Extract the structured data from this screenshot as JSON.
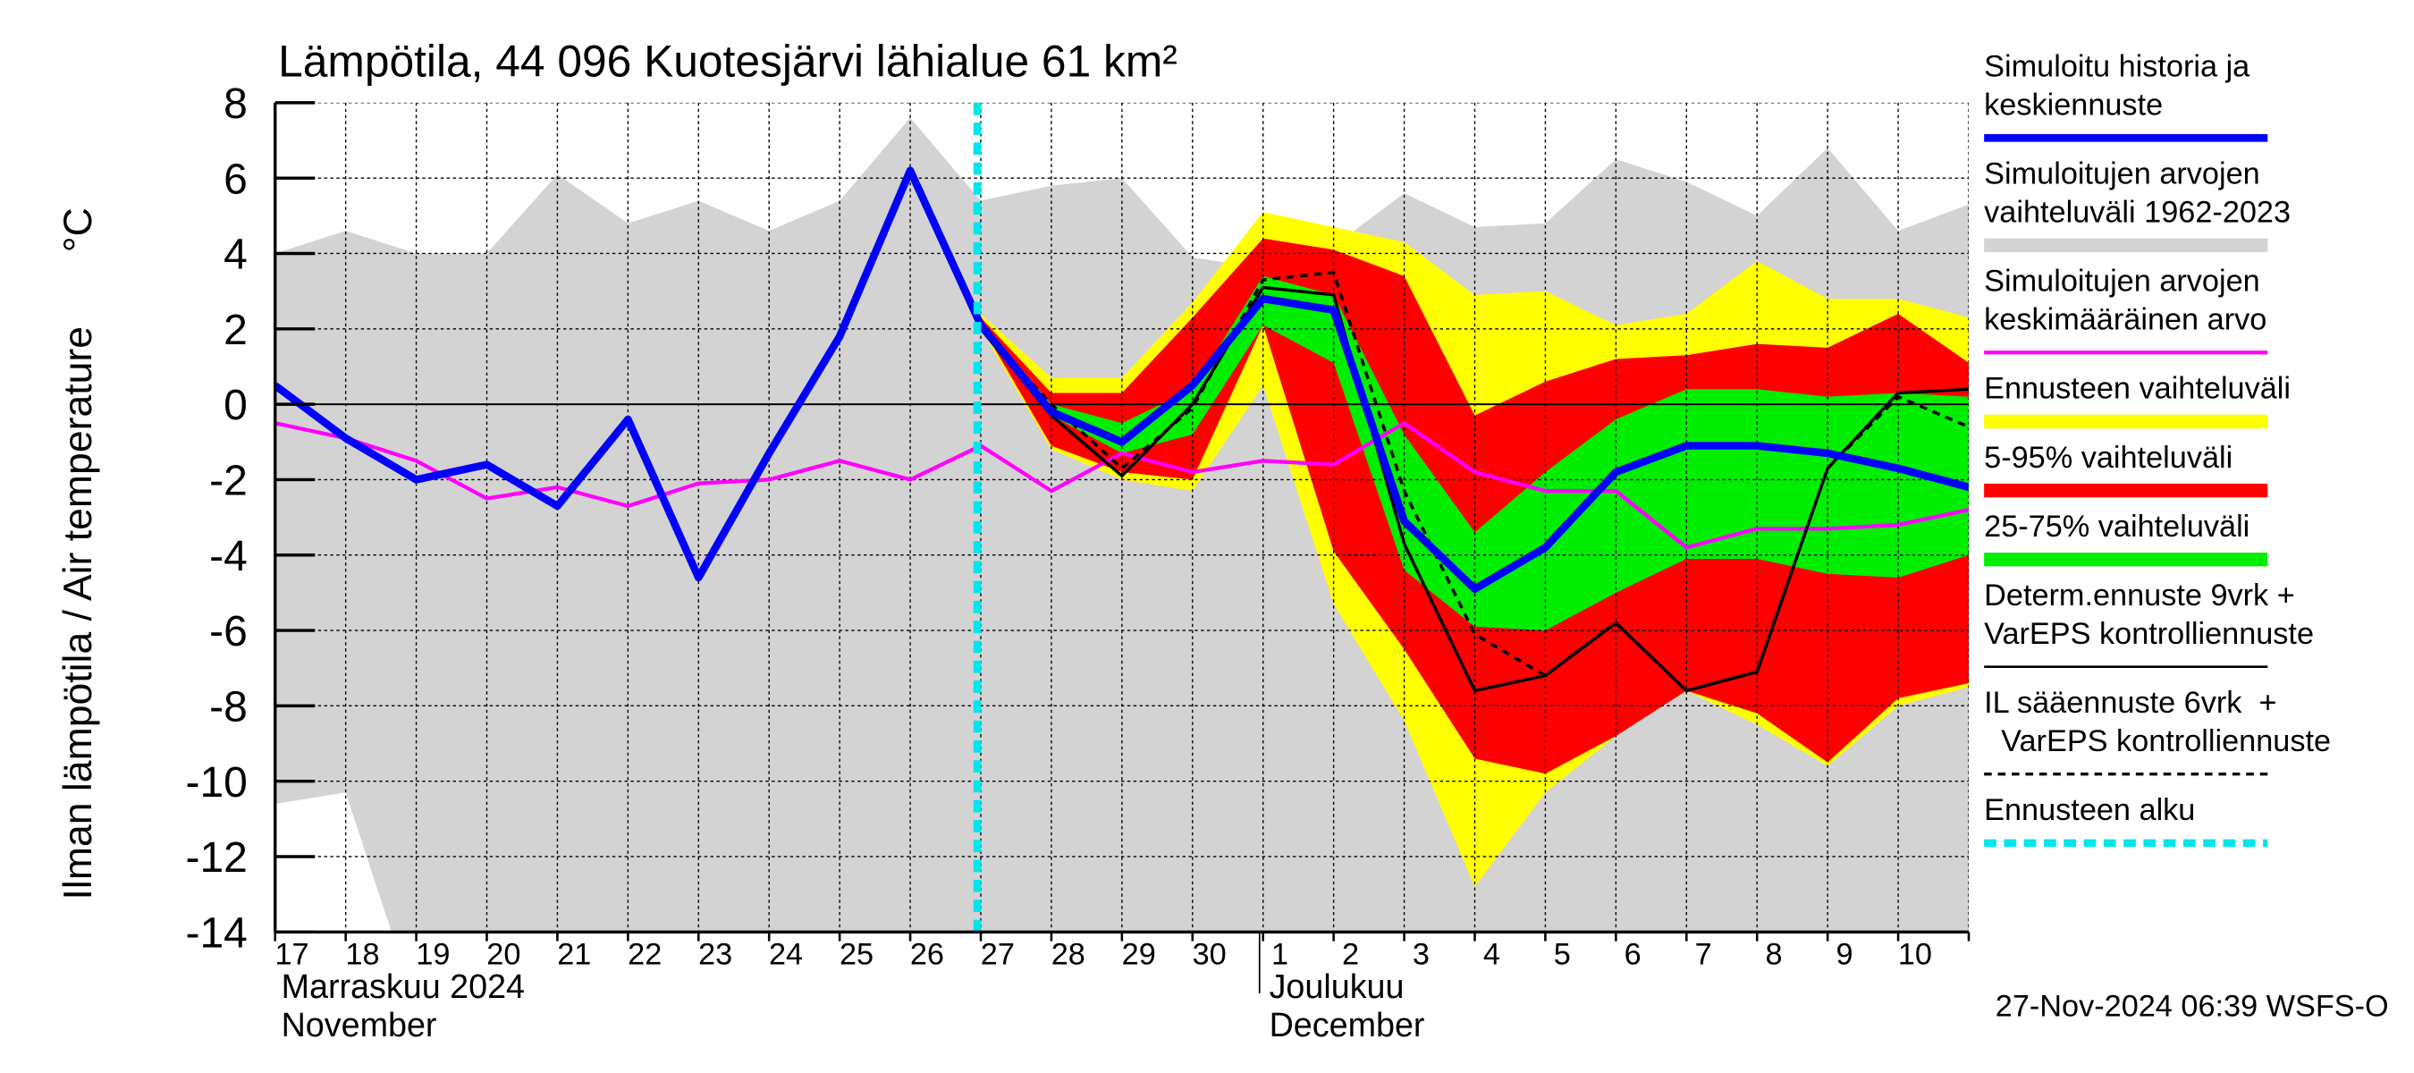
{
  "chart_data": {
    "type": "band-line",
    "title": "Lämpötila, 44 096 Kuotesjärvi lähialue 61 km²",
    "ylabel": "Ilman lämpötila / Air temperature",
    "yunit": "°C",
    "categories": [
      "17",
      "18",
      "19",
      "20",
      "21",
      "22",
      "23",
      "24",
      "25",
      "26",
      "27",
      "28",
      "29",
      "30",
      "1",
      "2",
      "3",
      "4",
      "5",
      "6",
      "7",
      "8",
      "9",
      "10",
      null
    ],
    "months": [
      {
        "index": 0,
        "lines": [
          "Marraskuu 2024",
          "November"
        ]
      },
      {
        "index": 14,
        "lines": [
          "Joulukuu",
          "December"
        ]
      }
    ],
    "month_separator": 13.95,
    "forecast_start": 9.95,
    "xlim": [
      0,
      24
    ],
    "ylim": [
      -14,
      8
    ],
    "yticks": [
      -14,
      -12,
      -10,
      -8,
      -6,
      -4,
      -2,
      0,
      2,
      4,
      6,
      8
    ],
    "grid": true,
    "bands": [
      {
        "name": "Simuloitujen arvojen vaihteluväli 1962-2023",
        "color": "#d3d3d3",
        "upper": [
          4.0,
          4.6,
          4.0,
          4.0,
          6.1,
          4.8,
          5.4,
          4.6,
          5.4,
          7.6,
          5.4,
          5.8,
          6.0,
          3.9,
          3.6,
          4.2,
          5.6,
          4.7,
          4.8,
          6.5,
          5.9,
          5.0,
          6.8,
          4.6,
          5.3
        ],
        "lower": [
          -10.6,
          -10.3,
          -16,
          -16,
          -16,
          -16,
          -16,
          -16,
          -16,
          -16,
          -16,
          -16,
          -16,
          -16,
          -16,
          -16,
          -16,
          -16,
          -16,
          -16,
          -16,
          -16,
          -16,
          -16,
          -16
        ]
      },
      {
        "name": "Ennusteen vaihteluväli",
        "color": "#ffff00",
        "upper": [
          null,
          null,
          null,
          null,
          null,
          null,
          null,
          null,
          null,
          null,
          2.4,
          0.7,
          0.7,
          2.7,
          5.1,
          4.7,
          4.3,
          2.9,
          3.0,
          2.1,
          2.4,
          3.8,
          2.8,
          2.8,
          2.3
        ],
        "lower": [
          null,
          null,
          null,
          null,
          null,
          null,
          null,
          null,
          null,
          null,
          2.0,
          -1.2,
          -2.0,
          -2.3,
          0.5,
          -5.3,
          -8.4,
          -12.8,
          -10.3,
          -8.8,
          -7.6,
          -8.5,
          -9.6,
          -8.0,
          -7.5
        ]
      },
      {
        "name": "5-95% vaihteluväli",
        "color": "#ff0000",
        "upper": [
          null,
          null,
          null,
          null,
          null,
          null,
          null,
          null,
          null,
          null,
          2.3,
          0.3,
          0.3,
          2.3,
          4.4,
          4.1,
          3.4,
          -0.3,
          0.6,
          1.2,
          1.3,
          1.6,
          1.5,
          2.4,
          1.1
        ],
        "lower": [
          null,
          null,
          null,
          null,
          null,
          null,
          null,
          null,
          null,
          null,
          2.1,
          -1.1,
          -1.8,
          -2.0,
          2.1,
          -3.9,
          -6.5,
          -9.4,
          -9.8,
          -8.8,
          -7.6,
          -8.2,
          -9.5,
          -7.8,
          -7.4
        ]
      },
      {
        "name": "25-75% vaihteluväli",
        "color": "#00ee00",
        "upper": [
          null,
          null,
          null,
          null,
          null,
          null,
          null,
          null,
          null,
          null,
          2.2,
          0.0,
          -0.5,
          0.4,
          3.4,
          2.9,
          -0.8,
          -3.4,
          -1.8,
          -0.4,
          0.4,
          0.4,
          0.2,
          0.3,
          0.2
        ],
        "lower": [
          null,
          null,
          null,
          null,
          null,
          null,
          null,
          null,
          null,
          null,
          2.1,
          -0.3,
          -1.3,
          -0.8,
          2.1,
          1.1,
          -4.4,
          -5.9,
          -6.0,
          -5.0,
          -4.1,
          -4.1,
          -4.5,
          -4.6,
          -4.0
        ]
      }
    ],
    "series": [
      {
        "name": "Simuloitujen arvojen keskimääräinen arvo",
        "color": "#ff00ff",
        "width": 2.5,
        "dash": "none",
        "values": [
          -0.5,
          -0.9,
          -1.5,
          -2.5,
          -2.2,
          -2.7,
          -2.1,
          -2.0,
          -1.5,
          -2.0,
          -1.1,
          -2.3,
          -1.3,
          -1.8,
          -1.5,
          -1.6,
          -0.5,
          -1.8,
          -2.3,
          -2.3,
          -3.8,
          -3.3,
          -3.3,
          -3.2,
          -2.8
        ]
      },
      {
        "name": "Determ.ennuste 9vrk + VarEPS kontrolliennuste",
        "color": "#000000",
        "width": 2,
        "dash": "none",
        "values": [
          null,
          null,
          null,
          null,
          null,
          null,
          null,
          null,
          null,
          6.2,
          2.0,
          -0.3,
          -1.9,
          0.0,
          3.1,
          2.9,
          -3.7,
          -7.6,
          -7.2,
          -5.8,
          -7.6,
          -7.1,
          -1.7,
          0.3,
          0.4
        ]
      },
      {
        "name": "IL sääennuste 6vrk + VarEPS kontrolliennuste",
        "color": "#000000",
        "width": 2,
        "dash": "5 4",
        "values": [
          null,
          null,
          null,
          null,
          null,
          null,
          null,
          null,
          null,
          6.2,
          2.0,
          0.0,
          -1.7,
          -0.1,
          3.3,
          3.5,
          -2.3,
          -6.1,
          -7.2,
          -5.8,
          -7.6,
          -7.1,
          -1.7,
          0.2,
          -0.6
        ]
      },
      {
        "name": "Simuloitu historia ja keskiennuste",
        "color": "#0000ff",
        "width": 5,
        "dash": "none",
        "values": [
          0.5,
          -0.9,
          -2.0,
          -1.6,
          -2.7,
          -0.4,
          -4.6,
          -1.3,
          1.8,
          6.2,
          2.1,
          -0.2,
          -1.0,
          0.5,
          2.8,
          2.5,
          -3.1,
          -4.9,
          -3.8,
          -1.8,
          -1.1,
          -1.1,
          -1.3,
          -1.7,
          -2.2
        ]
      }
    ],
    "legend": [
      {
        "lines": [
          "Simuloitu historia ja",
          "keskiennuste"
        ],
        "color": "#0000ff",
        "width": 5,
        "dash": "none"
      },
      {
        "lines": [
          "Simuloitujen arvojen",
          "vaihteluväli 1962-2023"
        ],
        "color": "#d3d3d3",
        "width": 9,
        "dash": "none"
      },
      {
        "lines": [
          "Simuloitujen arvojen",
          "keskimääräinen arvo"
        ],
        "color": "#ff00ff",
        "width": 2.5,
        "dash": "none"
      },
      {
        "lines": [
          "Ennusteen vaihteluväli"
        ],
        "color": "#ffff00",
        "width": 9,
        "dash": "none"
      },
      {
        "lines": [
          "5-95% vaihteluväli"
        ],
        "color": "#ff0000",
        "width": 9,
        "dash": "none"
      },
      {
        "lines": [
          "25-75% vaihteluväli"
        ],
        "color": "#00ee00",
        "width": 9,
        "dash": "none"
      },
      {
        "lines": [
          "Determ.ennuste 9vrk +",
          "VarEPS kontrolliennuste"
        ],
        "color": "#000000",
        "width": 1.5,
        "dash": "none"
      },
      {
        "lines": [
          "IL sääennuste 6vrk  +",
          "  VarEPS kontrolliennuste"
        ],
        "color": "#000000",
        "width": 2,
        "dash": "5 4"
      },
      {
        "lines": [
          "Ennusteen alku"
        ],
        "color": "#00e5ee",
        "width": 5,
        "dash": "8 5"
      }
    ],
    "forecast_color": "#00e5ee",
    "timestamp": "27-Nov-2024 06:39 WSFS-O"
  }
}
